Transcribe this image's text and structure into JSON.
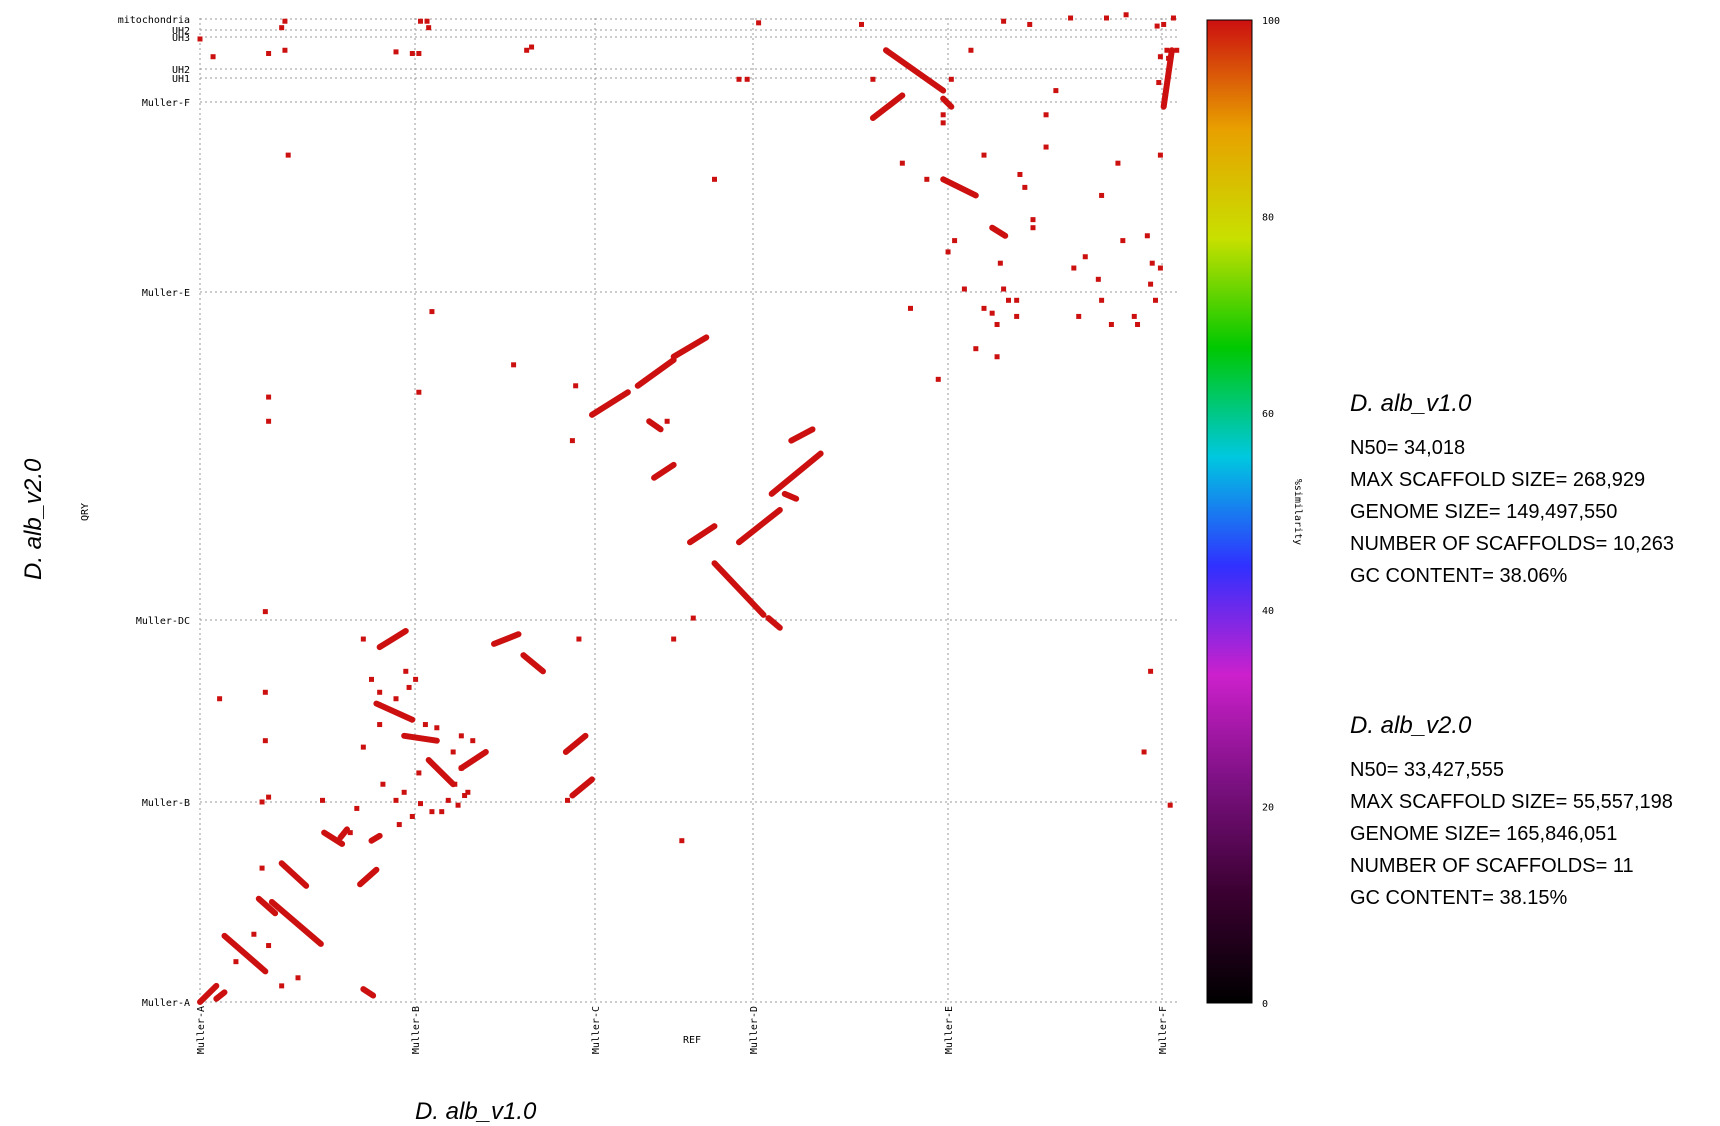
{
  "chart_data": {
    "type": "scatter",
    "x_axis_label": "REF",
    "y_axis_label": "QRY",
    "x_ticks": [
      "Muller-A",
      "Muller-B",
      "Muller-C",
      "Muller-D",
      "Muller-E",
      "Muller-F"
    ],
    "y_ticks": [
      "Muller-A",
      "Muller-B",
      "Muller-DC",
      "Muller-E",
      "Muller-F",
      "UH1",
      "UH2",
      "UH3",
      "UH2",
      "mitochondria"
    ],
    "colorbar": {
      "label": "%similarity",
      "ticks": [
        "0",
        "20",
        "40",
        "60",
        "80",
        "100"
      ],
      "range": [
        0,
        100
      ],
      "stops": [
        "#000000",
        "#3a0030",
        "#7a1080",
        "#cc20cc",
        "#3030ff",
        "#00c8e0",
        "#00c800",
        "#c8e000",
        "#e8a000",
        "#cc1010"
      ]
    },
    "point_color": "#cc1010",
    "x_range": [
      0,
      6
    ],
    "y_range": [
      0,
      6.1
    ],
    "segments": [
      [
        0.0,
        0.0,
        0.1,
        0.1
      ],
      [
        0.1,
        0.02,
        0.15,
        0.06
      ],
      [
        0.15,
        0.41,
        0.4,
        0.19
      ],
      [
        0.44,
        0.62,
        0.74,
        0.36
      ],
      [
        0.5,
        0.86,
        0.65,
        0.72
      ],
      [
        0.36,
        0.64,
        0.46,
        0.55
      ],
      [
        0.76,
        1.05,
        0.87,
        0.98
      ],
      [
        0.98,
        0.73,
        1.08,
        0.82
      ],
      [
        0.86,
        1.02,
        0.9,
        1.07
      ],
      [
        1.0,
        0.08,
        1.06,
        0.04
      ],
      [
        1.05,
        1.0,
        1.1,
        1.03
      ],
      [
        1.1,
        2.2,
        1.26,
        2.3
      ],
      [
        1.08,
        1.85,
        1.3,
        1.75
      ],
      [
        1.25,
        1.65,
        1.45,
        1.62
      ],
      [
        1.4,
        1.5,
        1.55,
        1.35
      ],
      [
        1.6,
        1.45,
        1.75,
        1.55
      ],
      [
        1.8,
        2.22,
        1.95,
        2.28
      ],
      [
        1.98,
        2.15,
        2.1,
        2.05
      ],
      [
        2.24,
        1.55,
        2.36,
        1.65
      ],
      [
        2.28,
        1.28,
        2.4,
        1.38
      ],
      [
        2.4,
        3.64,
        2.62,
        3.78
      ],
      [
        2.68,
        3.82,
        2.9,
        3.98
      ],
      [
        2.9,
        4.0,
        3.1,
        4.12
      ],
      [
        2.75,
        3.6,
        2.82,
        3.55
      ],
      [
        2.78,
        3.25,
        2.9,
        3.33
      ],
      [
        3.0,
        2.85,
        3.15,
        2.95
      ],
      [
        3.15,
        2.72,
        3.45,
        2.4
      ],
      [
        3.3,
        2.85,
        3.55,
        3.05
      ],
      [
        3.5,
        3.15,
        3.8,
        3.4
      ],
      [
        3.62,
        3.48,
        3.75,
        3.55
      ],
      [
        3.48,
        2.38,
        3.55,
        2.32
      ],
      [
        3.58,
        3.15,
        3.65,
        3.12
      ],
      [
        4.12,
        5.48,
        4.3,
        5.62
      ],
      [
        4.2,
        5.9,
        4.55,
        5.65
      ],
      [
        4.55,
        5.1,
        4.75,
        5.0
      ],
      [
        4.85,
        4.8,
        4.93,
        4.75
      ],
      [
        5.9,
        5.55,
        5.95,
        5.9
      ],
      [
        4.55,
        5.6,
        4.6,
        5.55
      ]
    ],
    "points": [
      [
        0.0,
        5.97
      ],
      [
        0.08,
        5.86
      ],
      [
        0.42,
        5.88
      ],
      [
        0.52,
        5.9
      ],
      [
        0.5,
        6.04
      ],
      [
        0.52,
        6.08
      ],
      [
        0.54,
        5.25
      ],
      [
        0.42,
        3.75
      ],
      [
        0.42,
        3.6
      ],
      [
        0.4,
        2.42
      ],
      [
        0.4,
        1.92
      ],
      [
        0.4,
        1.62
      ],
      [
        0.42,
        1.27
      ],
      [
        0.38,
        1.24
      ],
      [
        0.12,
        1.88
      ],
      [
        0.75,
        1.25
      ],
      [
        0.92,
        1.05
      ],
      [
        0.38,
        0.83
      ],
      [
        0.33,
        0.42
      ],
      [
        0.42,
        0.35
      ],
      [
        0.5,
        0.1
      ],
      [
        0.6,
        0.15
      ],
      [
        0.22,
        0.25
      ],
      [
        0.96,
        1.2
      ],
      [
        1.35,
        6.08
      ],
      [
        1.3,
        5.88
      ],
      [
        1.2,
        5.89
      ],
      [
        1.34,
        5.88
      ],
      [
        1.4,
        6.04
      ],
      [
        1.39,
        6.08
      ],
      [
        1.42,
        4.28
      ],
      [
        1.34,
        3.78
      ],
      [
        1.0,
        2.25
      ],
      [
        1.05,
        2.0
      ],
      [
        1.0,
        1.58
      ],
      [
        1.1,
        1.72
      ],
      [
        1.12,
        1.35
      ],
      [
        1.2,
        1.25
      ],
      [
        1.25,
        1.3
      ],
      [
        1.3,
        1.15
      ],
      [
        1.35,
        1.23
      ],
      [
        1.42,
        1.18
      ],
      [
        1.22,
        1.1
      ],
      [
        1.26,
        2.05
      ],
      [
        1.28,
        1.95
      ],
      [
        1.2,
        1.88
      ],
      [
        1.1,
        1.92
      ],
      [
        1.32,
        2.0
      ],
      [
        1.38,
        1.72
      ],
      [
        1.45,
        1.7
      ],
      [
        1.34,
        1.42
      ],
      [
        1.52,
        1.25
      ],
      [
        1.56,
        1.35
      ],
      [
        1.6,
        1.45
      ],
      [
        1.55,
        1.55
      ],
      [
        1.62,
        1.28
      ],
      [
        1.48,
        1.18
      ],
      [
        1.58,
        1.22
      ],
      [
        1.64,
        1.3
      ],
      [
        1.67,
        1.62
      ],
      [
        1.6,
        1.65
      ],
      [
        1.92,
        3.95
      ],
      [
        2.0,
        5.9
      ],
      [
        2.03,
        5.92
      ],
      [
        2.3,
        3.82
      ],
      [
        2.28,
        3.48
      ],
      [
        2.32,
        2.25
      ],
      [
        2.25,
        1.25
      ],
      [
        2.86,
        3.6
      ],
      [
        3.15,
        5.1
      ],
      [
        3.3,
        5.72
      ],
      [
        3.35,
        5.72
      ],
      [
        3.42,
        6.07
      ],
      [
        2.9,
        2.25
      ],
      [
        2.95,
        1.0
      ],
      [
        3.02,
        2.38
      ],
      [
        4.05,
        6.06
      ],
      [
        4.12,
        5.72
      ],
      [
        4.3,
        5.2
      ],
      [
        4.45,
        5.1
      ],
      [
        4.6,
        5.72
      ],
      [
        4.55,
        5.45
      ],
      [
        4.8,
        5.25
      ],
      [
        5.02,
        5.13
      ],
      [
        4.35,
        4.3
      ],
      [
        4.52,
        3.86
      ],
      [
        4.85,
        4.27
      ],
      [
        4.68,
        4.42
      ],
      [
        4.8,
        4.3
      ],
      [
        4.88,
        4.2
      ],
      [
        4.95,
        4.35
      ],
      [
        5.0,
        4.35
      ],
      [
        4.9,
        4.58
      ],
      [
        4.92,
        4.42
      ],
      [
        4.75,
        4.05
      ],
      [
        4.88,
        4.0
      ],
      [
        5.0,
        4.25
      ],
      [
        5.05,
        5.05
      ],
      [
        5.1,
        4.8
      ],
      [
        5.1,
        4.85
      ],
      [
        5.18,
        5.3
      ],
      [
        5.18,
        5.5
      ],
      [
        5.24,
        5.65
      ],
      [
        5.33,
        6.1
      ],
      [
        5.55,
        6.1
      ],
      [
        5.67,
        6.12
      ],
      [
        5.92,
        5.9
      ],
      [
        5.9,
        6.06
      ],
      [
        5.96,
        6.1
      ],
      [
        5.86,
        6.05
      ],
      [
        5.88,
        5.86
      ],
      [
        5.93,
        5.85
      ],
      [
        5.98,
        5.9
      ],
      [
        5.87,
        5.7
      ],
      [
        5.88,
        5.25
      ],
      [
        5.94,
        1.22
      ],
      [
        5.82,
        2.05
      ],
      [
        5.78,
        1.55
      ],
      [
        5.8,
        4.75
      ],
      [
        5.83,
        4.58
      ],
      [
        5.65,
        4.72
      ],
      [
        5.72,
        4.25
      ],
      [
        5.74,
        4.2
      ],
      [
        5.82,
        4.45
      ],
      [
        5.85,
        4.35
      ],
      [
        5.58,
        4.2
      ],
      [
        5.52,
        4.35
      ],
      [
        5.38,
        4.25
      ],
      [
        5.35,
        4.55
      ],
      [
        5.42,
        4.62
      ],
      [
        5.5,
        4.48
      ],
      [
        5.52,
        5.0
      ],
      [
        5.62,
        5.2
      ],
      [
        5.88,
        4.55
      ],
      [
        4.92,
        6.08
      ],
      [
        5.08,
        6.06
      ],
      [
        4.72,
        5.9
      ],
      [
        4.55,
        5.5
      ],
      [
        4.58,
        4.65
      ],
      [
        4.62,
        4.72
      ]
    ]
  },
  "y_axis_title": "D. alb_v2.0",
  "x_axis_title": "D. alb_v1.0",
  "stats": [
    {
      "title": "D. alb_v1.0",
      "lines": [
        "N50= 34,018",
        "MAX SCAFFOLD SIZE= 268,929",
        "GENOME SIZE= 149,497,550",
        "NUMBER OF SCAFFOLDS= 10,263",
        "GC CONTENT= 38.06%"
      ]
    },
    {
      "title": "D. alb_v2.0",
      "lines": [
        "N50= 33,427,555",
        "MAX SCAFFOLD SIZE= 55,557,198",
        "GENOME SIZE= 165,846,051",
        "NUMBER OF SCAFFOLDS= 11",
        "GC CONTENT= 38.15%"
      ]
    }
  ]
}
